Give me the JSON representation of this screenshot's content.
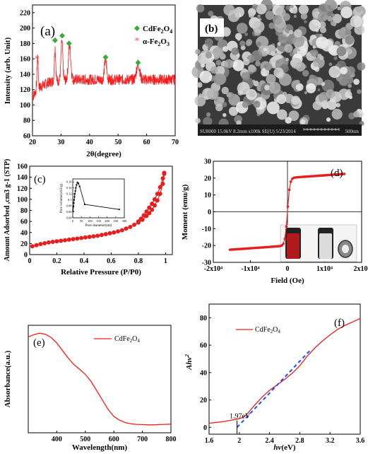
{
  "figure": {
    "panels": [
      {
        "label": "(a)"
      },
      {
        "label": "(b)"
      },
      {
        "label": "(c)"
      },
      {
        "label": "(d)"
      },
      {
        "label": "(e)"
      },
      {
        "label": "(f)"
      }
    ]
  },
  "sem": {
    "info_bar": "SU8000 15.0kV 8.2mm x100k SE(U) 5/23/2014",
    "scale_text": "500nm",
    "bg_color": "#3a3a3a"
  },
  "chart_data": [
    {
      "id": "a",
      "type": "line",
      "label": "(a)",
      "xlabel": "2θ(degree)",
      "ylabel": "Intensity (arb. Unit)",
      "xlim": [
        20,
        70
      ],
      "ylim": [
        60,
        230
      ],
      "xticks": [
        20,
        30,
        40,
        50,
        60,
        70
      ],
      "yticks": [
        60,
        80,
        100,
        120,
        140,
        160,
        180,
        200,
        220
      ],
      "color": "#ff1a1a",
      "baseline": [
        [
          20,
          110
        ],
        [
          21,
          117
        ],
        [
          22,
          122
        ],
        [
          24,
          126
        ],
        [
          26,
          130
        ],
        [
          28,
          131
        ],
        [
          30,
          132
        ],
        [
          35,
          133
        ],
        [
          40,
          133
        ],
        [
          45,
          133
        ],
        [
          50,
          133
        ],
        [
          55,
          133
        ],
        [
          60,
          133
        ],
        [
          65,
          133
        ],
        [
          70,
          133
        ]
      ],
      "peaks": [
        {
          "x": 21.8,
          "h": 42,
          "w": 0.3
        },
        {
          "x": 27.9,
          "h": 44,
          "w": 0.35
        },
        {
          "x": 30.3,
          "h": 50,
          "w": 0.45
        },
        {
          "x": 33.0,
          "h": 44,
          "w": 0.6
        },
        {
          "x": 45.6,
          "h": 26,
          "w": 0.55
        },
        {
          "x": 57.0,
          "h": 21,
          "w": 0.75
        }
      ],
      "noise": 7,
      "markers": [
        {
          "x": 27.9,
          "y": 184,
          "kind": "diamond"
        },
        {
          "x": 30.4,
          "y": 190,
          "kind": "diamond"
        },
        {
          "x": 32.8,
          "y": 180,
          "kind": "diamond"
        },
        {
          "x": 45.6,
          "y": 162,
          "kind": "diamond"
        },
        {
          "x": 57.0,
          "y": 155,
          "kind": "diamond"
        },
        {
          "x": 21.6,
          "y": 160,
          "kind": "star"
        }
      ],
      "legend": [
        {
          "name": "CdFe2O4",
          "kind": "diamond",
          "color": "#3aaa3a"
        },
        {
          "name": "α-Fe2O3",
          "kind": "star",
          "color": "#ff4d6d"
        }
      ]
    },
    {
      "id": "c",
      "type": "line",
      "label": "(c)",
      "xlabel": "Relative Pressure (P/P0)",
      "ylabel": "Amount Adsorbed ,cm3 g-1 (STP)",
      "xlim": [
        0.0,
        1.05
      ],
      "ylim": [
        0,
        160
      ],
      "xticks": [
        0.0,
        0.2,
        0.4,
        0.6,
        0.8,
        1.0
      ],
      "yticks": [
        0,
        20,
        40,
        60,
        80,
        100,
        120,
        140,
        160
      ],
      "color": "#e81e1e",
      "series": [
        {
          "name": "adsorption",
          "x": [
            0.02,
            0.05,
            0.08,
            0.11,
            0.14,
            0.17,
            0.2,
            0.23,
            0.26,
            0.29,
            0.32,
            0.35,
            0.38,
            0.41,
            0.44,
            0.47,
            0.5,
            0.53,
            0.56,
            0.59,
            0.62,
            0.65,
            0.68,
            0.71,
            0.74,
            0.77,
            0.8,
            0.83,
            0.86,
            0.88,
            0.9,
            0.92,
            0.94,
            0.96,
            0.98,
            0.99
          ],
          "y": [
            15,
            17,
            19,
            20.5,
            22,
            23,
            24,
            25,
            26,
            27,
            28,
            29,
            30,
            31,
            32,
            33,
            34,
            35.5,
            37,
            38.5,
            40,
            42,
            44,
            47,
            50,
            54,
            58,
            63,
            70,
            75,
            81,
            89,
            98,
            110,
            128,
            146
          ]
        },
        {
          "name": "desorption",
          "x": [
            0.99,
            0.98,
            0.96,
            0.94,
            0.92,
            0.9,
            0.88,
            0.86,
            0.84,
            0.82,
            0.8
          ],
          "y": [
            148,
            138,
            122,
            110,
            100,
            92,
            85,
            78,
            71,
            65,
            60
          ]
        }
      ],
      "inset": {
        "type": "line",
        "xlabel": "Pore diameter(nm)",
        "ylabel": "Pore volume(cm3/g)",
        "xlim": [
          0,
          300
        ],
        "ylim": [
          0.04,
          0.17
        ],
        "xticks": [
          0,
          50,
          100,
          150,
          200,
          250,
          300
        ],
        "yticks": [
          0.04,
          0.06,
          0.08,
          0.1,
          0.12,
          0.14,
          0.16
        ],
        "x": [
          2,
          4,
          6,
          8,
          10,
          12,
          15,
          18,
          22,
          27,
          33,
          40,
          70,
          270
        ],
        "y": [
          0.061,
          0.078,
          0.09,
          0.1,
          0.11,
          0.12,
          0.13,
          0.14,
          0.15,
          0.158,
          0.155,
          0.145,
          0.085,
          0.068
        ]
      }
    },
    {
      "id": "d",
      "type": "line",
      "label": "(d)",
      "xlabel": "Field (Oe)",
      "ylabel": "Moment (emu/g)",
      "xlim": [
        -20000,
        20000
      ],
      "ylim": [
        -30,
        30
      ],
      "xticks": [
        -20000,
        -10000,
        0,
        10000,
        20000
      ],
      "xticklabels": [
        "-2x10⁴",
        "-1x10⁴",
        "0",
        "1x10⁴",
        "2x10⁴"
      ],
      "yticks": [
        -30,
        -20,
        -10,
        0,
        10,
        20,
        30
      ],
      "color": "#e81e1e",
      "ms": 22.5,
      "field_max": 15500,
      "photo": {
        "left_fill": "#b01a1a",
        "right_fill": "#dcdcdc"
      }
    },
    {
      "id": "e",
      "type": "line",
      "label": "(e)",
      "xlabel": "Wavelength(nm)",
      "ylabel": "Absorbance(a.u.)",
      "xlim": [
        300,
        800
      ],
      "ylim": [
        0,
        23
      ],
      "xticks": [
        400,
        500,
        600,
        700,
        800
      ],
      "color": "#ff1a1a",
      "series": [
        {
          "name": "CdFe2O4",
          "x": [
            300,
            320,
            340,
            360,
            380,
            400,
            420,
            440,
            460,
            480,
            500,
            520,
            540,
            560,
            580,
            600,
            620,
            640,
            660,
            680,
            700,
            720,
            740,
            760,
            780,
            800
          ],
          "y": [
            20.5,
            21.0,
            21.3,
            21.1,
            20.4,
            19.2,
            17.6,
            16.0,
            14.6,
            13.6,
            12.5,
            11.0,
            9.0,
            7.0,
            5.0,
            3.5,
            2.7,
            2.2,
            1.9,
            1.8,
            1.75,
            1.7,
            1.7,
            1.75,
            1.8,
            1.85
          ]
        }
      ],
      "legend": [
        {
          "name": "CdFe2O4"
        }
      ]
    },
    {
      "id": "f",
      "type": "line",
      "label": "(f)",
      "xlabel": "hν(eV)",
      "ylabel": "Ahν²",
      "xlim": [
        1.6,
        3.6
      ],
      "ylim": [
        -5,
        90
      ],
      "xticks": [
        1.6,
        2.0,
        2.4,
        2.8,
        3.2,
        3.6
      ],
      "yticks": [
        0,
        20,
        40,
        60,
        80
      ],
      "color": "#e81e1e",
      "series": [
        {
          "name": "CdFe2O4",
          "x": [
            1.6,
            1.7,
            1.8,
            1.9,
            1.97,
            2.05,
            2.1,
            2.2,
            2.3,
            2.4,
            2.5,
            2.6,
            2.7,
            2.8,
            2.9,
            3.0,
            3.1,
            3.2,
            3.3,
            3.4,
            3.5,
            3.6
          ],
          "y": [
            3.0,
            3.6,
            4.3,
            5.3,
            6.0,
            7.2,
            9.5,
            16.0,
            22.0,
            27.0,
            31.0,
            35.0,
            39.5,
            45.0,
            52.0,
            58.0,
            63.0,
            67.5,
            71.5,
            74.5,
            77.0,
            79.5
          ]
        }
      ],
      "fit_line": {
        "x": [
          1.97,
          2.95
        ],
        "y": [
          0,
          57
        ],
        "color": "#1a4dff"
      },
      "annotation": {
        "text": "1.97eV",
        "x": 1.97,
        "y": 5.0
      },
      "legend": [
        {
          "name": "CdFe2O4"
        }
      ]
    }
  ]
}
